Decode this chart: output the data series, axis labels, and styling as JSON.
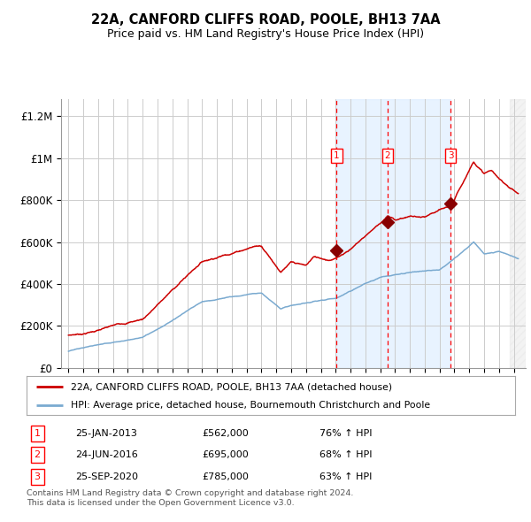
{
  "title1": "22A, CANFORD CLIFFS ROAD, POOLE, BH13 7AA",
  "title2": "Price paid vs. HM Land Registry's House Price Index (HPI)",
  "ylabel_ticks": [
    "£0",
    "£200K",
    "£400K",
    "£600K",
    "£800K",
    "£1M",
    "£1.2M"
  ],
  "ytick_vals": [
    0,
    200000,
    400000,
    600000,
    800000,
    1000000,
    1200000
  ],
  "ylim": [
    0,
    1280000
  ],
  "xlim_start": 1994.5,
  "xlim_end": 2025.8,
  "property_color": "#cc0000",
  "hpi_color": "#7aaad0",
  "sale_marker_color": "#880000",
  "sale_dates": [
    2013.07,
    2016.49,
    2020.74
  ],
  "sale_prices": [
    562000,
    695000,
    785000
  ],
  "sale_labels": [
    "1",
    "2",
    "3"
  ],
  "vline_x": [
    2013.07,
    2016.49,
    2020.74
  ],
  "shade_start": 2013.07,
  "shade_end": 2020.74,
  "legend_property": "22A, CANFORD CLIFFS ROAD, POOLE, BH13 7AA (detached house)",
  "legend_hpi": "HPI: Average price, detached house, Bournemouth Christchurch and Poole",
  "table_rows": [
    {
      "num": "1",
      "date": "25-JAN-2013",
      "price": "£562,000",
      "pct": "76% ↑ HPI"
    },
    {
      "num": "2",
      "date": "24-JUN-2016",
      "price": "£695,000",
      "pct": "68% ↑ HPI"
    },
    {
      "num": "3",
      "date": "25-SEP-2020",
      "price": "£785,000",
      "pct": "63% ↑ HPI"
    }
  ],
  "footnote": "Contains HM Land Registry data © Crown copyright and database right 2024.\nThis data is licensed under the Open Government Licence v3.0.",
  "background_color": "#ffffff",
  "plot_bg_color": "#ffffff",
  "grid_color": "#cccccc",
  "shade_color": "#ddeeff"
}
